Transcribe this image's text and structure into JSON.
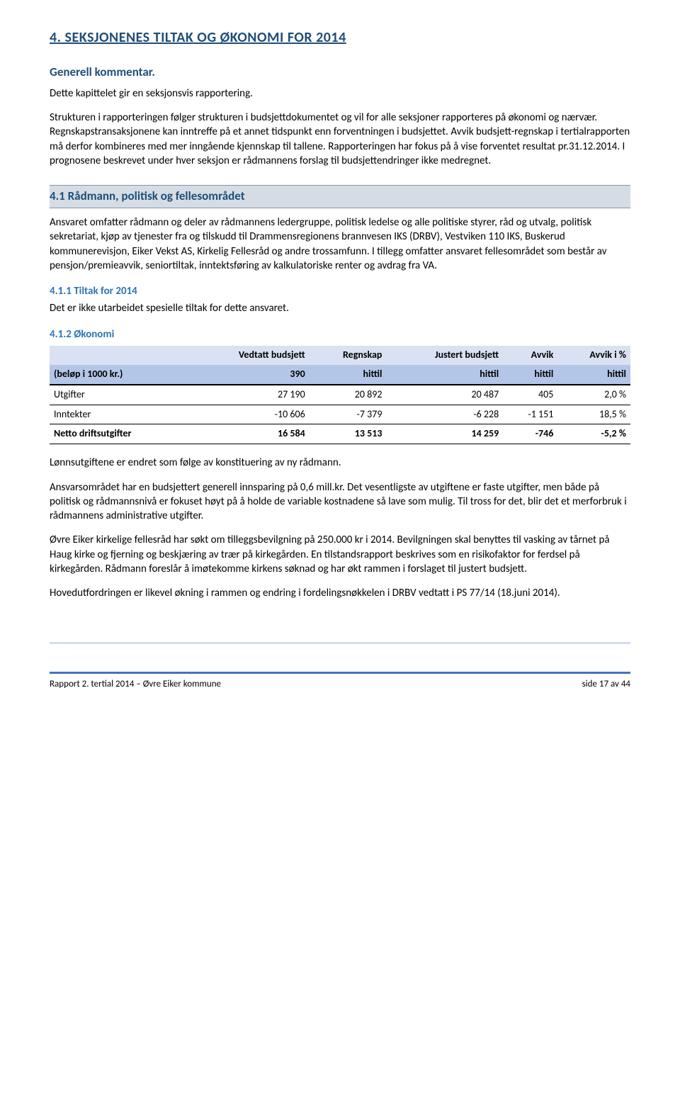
{
  "heading_main": "4.     SEKSJONENES TILTAK OG ØKONOMI FOR 2014",
  "heading_sub1": "Generell kommentar.",
  "para1": "Dette kapittelet gir en seksjonsvis rapportering.",
  "para2": "Strukturen i rapporteringen følger strukturen i budsjettdokumentet og vil for alle seksjoner rapporteres på økonomi og nærvær. Regnskapstransaksjonene kan inntreffe på et annet tidspunkt enn forventningen i budsjettet. Avvik budsjett-regnskap i tertialrapporten må derfor kombineres med mer inngående kjennskap til tallene. Rapporteringen har fokus på å vise forventet resultat pr.31.12.2014. I prognosene beskrevet under hver seksjon er rådmannens forslag til budsjettendringer ikke medregnet.",
  "section41_title": "4.1     Rådmann, politisk og fellesområdet",
  "section41_para": "Ansvaret omfatter rådmann og deler av rådmannens ledergruppe, politisk ledelse og alle politiske styrer, råd og utvalg, politisk sekretariat, kjøp av tjenester fra og tilskudd til Drammensregionens brannvesen IKS (DRBV), Vestviken 110 IKS, Buskerud kommunerevisjon, Eiker Vekst AS, Kirkelig Fellesråd og andre trossamfunn. I tillegg omfatter ansvaret fellesområdet som består av pensjon/premieavvik, seniortiltak, inntektsføring av kalkulatoriske renter og avdrag fra VA.",
  "section411_title": "4.1.1   Tiltak for 2014",
  "section411_text": "Det er ikke utarbeidet spesielle tiltak for dette ansvaret.",
  "section412_title": "4.1.2   Økonomi",
  "table": {
    "header_row1": [
      "",
      "Vedtatt budsjett",
      "Regnskap",
      "Justert budsjett",
      "Avvik",
      "Avvik i %"
    ],
    "header_row2": [
      "(beløp i 1000 kr.)",
      "390",
      "hittil",
      "hittil",
      "hittil",
      "hittil"
    ],
    "rows": [
      {
        "label": "Utgifter",
        "c1": "27 190",
        "c2": "20 892",
        "c3": "20 487",
        "c4": "405",
        "c5": "2,0 %"
      },
      {
        "label": "Inntekter",
        "c1": "-10 606",
        "c2": "-7 379",
        "c3": "-6 228",
        "c4": "-1 151",
        "c5": "18,5 %"
      },
      {
        "label": "Netto driftsutgifter",
        "c1": "16 584",
        "c2": "13 513",
        "c3": "14 259",
        "c4": "-746",
        "c5": "-5,2 %"
      }
    ]
  },
  "para_after_table_1": "Lønnsutgiftene er endret som følge av konstituering av ny rådmann.",
  "para_after_table_2": "Ansvarsområdet har en budsjettert generell innsparing på 0,6 mill.kr. Det vesentligste av utgiftene er faste utgifter, men både på politisk og rådmannsnivå er fokuset høyt på å holde de variable kostnadene så lave som mulig. Til tross for det, blir det et merforbruk i rådmannens administrative utgifter.",
  "para_after_table_3": "Øvre Eiker kirkelige fellesråd har søkt om tilleggsbevilgning på 250.000 kr i 2014. Bevilgningen skal benyttes til vasking av tårnet på Haug kirke og fjerning og beskjæring av trær på kirkegården. En tilstandsrapport beskrives som en risikofaktor for ferdsel på kirkegården. Rådmann foreslår å imøtekomme kirkens søknad og har økt rammen i forslaget til justert budsjett.",
  "para_after_table_4": "Hovedutfordringen er likevel økning i rammen og endring i fordelingsnøkkelen i DRBV vedtatt i PS 77/14 (18.juni 2014).",
  "footer_left": "Rapport 2. tertial 2014 – Øvre Eiker kommune",
  "footer_right": "side 17 av 44"
}
